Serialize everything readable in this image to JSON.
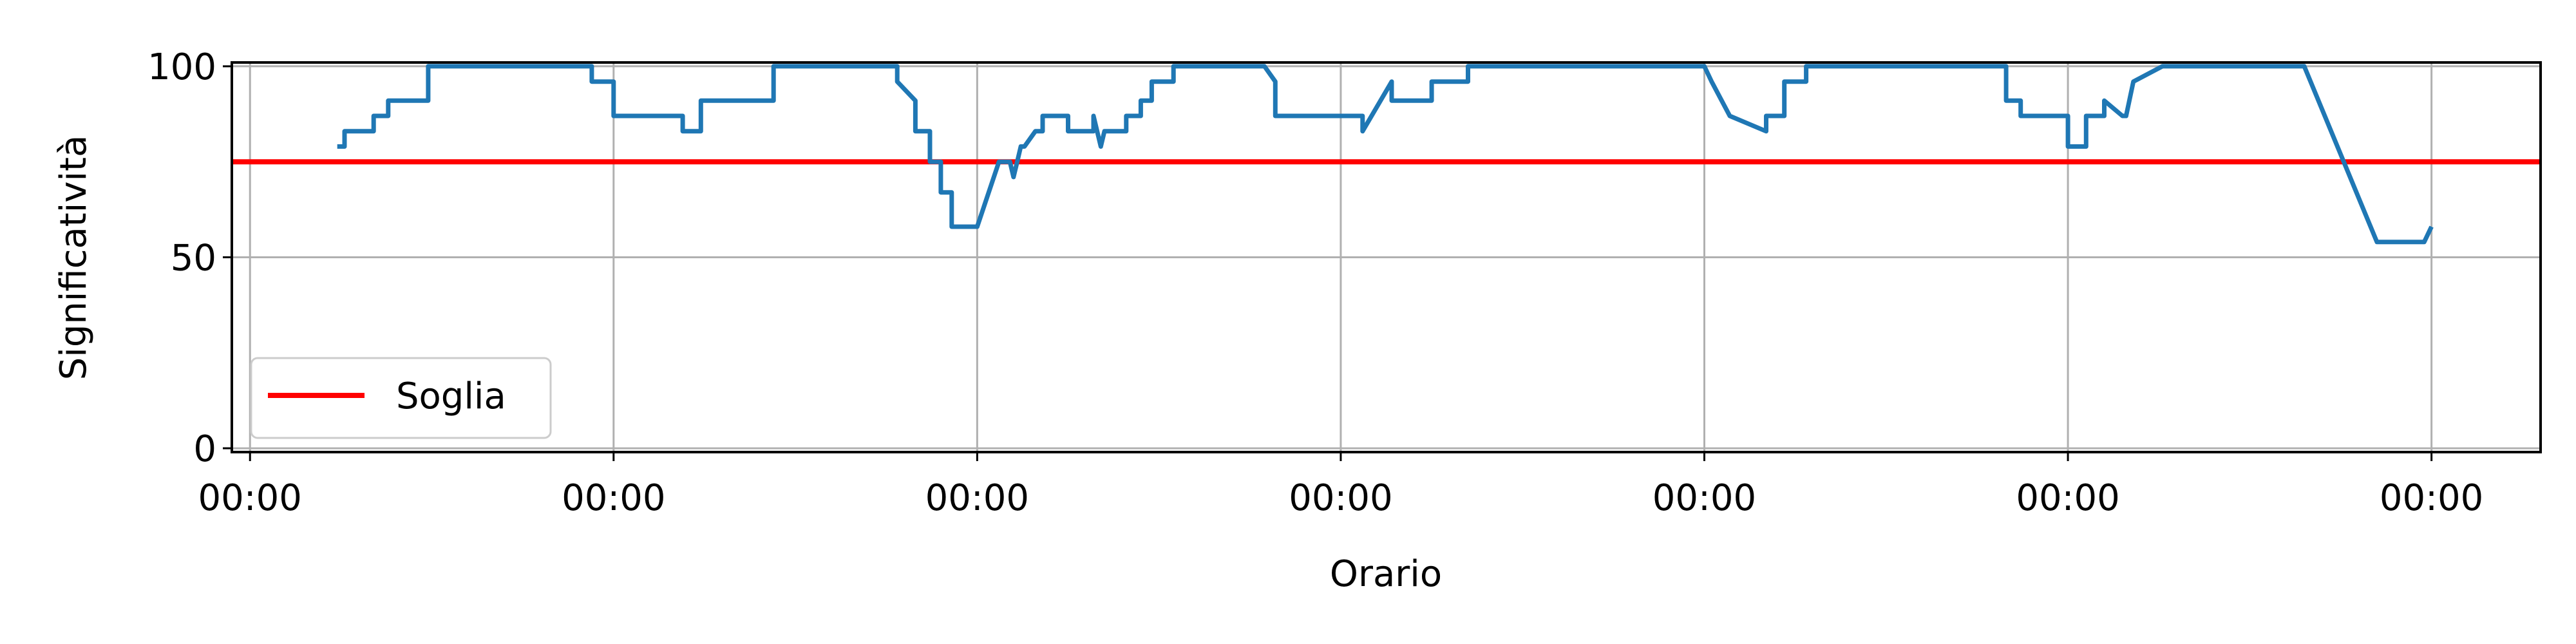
{
  "chart_data": {
    "type": "line",
    "xlabel": "Orario",
    "ylabel": "Significatività",
    "x_tick_labels": [
      "00:00",
      "00:00",
      "00:00",
      "00:00",
      "00:00",
      "00:00",
      "00:00"
    ],
    "y_ticks": [
      0,
      50,
      100
    ],
    "ylim": [
      -1,
      101
    ],
    "xlim": [
      -0.05,
      6.3
    ],
    "grid": true,
    "legend_placement": "lower-left",
    "threshold": {
      "name": "Soglia",
      "value": 75,
      "color": "#ff0000"
    },
    "series": [
      {
        "color": "#1f77b4",
        "x": [
          0.24,
          0.26,
          0.26,
          0.34,
          0.34,
          0.38,
          0.38,
          0.41,
          0.41,
          0.49,
          0.49,
          0.94,
          0.94,
          1.0,
          1.0,
          1.19,
          1.19,
          1.24,
          1.24,
          1.44,
          1.44,
          1.78,
          1.78,
          1.83,
          1.83,
          1.87,
          1.87,
          1.9,
          1.9,
          1.93,
          1.93,
          1.96,
          1.96,
          2.0,
          2.06,
          2.09,
          2.1,
          2.11,
          2.12,
          2.13,
          2.16,
          2.16,
          2.18,
          2.18,
          2.21,
          2.21,
          2.25,
          2.25,
          2.32,
          2.32,
          2.34,
          2.35,
          2.36,
          2.36,
          2.41,
          2.41,
          2.45,
          2.45,
          2.48,
          2.48,
          2.54,
          2.54,
          2.57,
          2.57,
          2.79,
          2.82,
          2.82,
          3.0,
          3.02,
          3.06,
          3.06,
          3.14,
          3.14,
          3.25,
          3.25,
          3.35,
          3.35,
          4.0,
          4.02,
          4.02,
          4.07,
          4.07,
          4.17,
          4.17,
          4.22,
          4.22,
          4.28,
          4.28,
          4.38,
          4.38,
          4.49,
          4.49,
          4.83,
          4.83,
          4.87,
          4.87,
          4.91,
          4.91,
          5.0,
          5.0,
          5.05,
          5.05,
          5.1,
          5.1,
          5.15,
          5.16,
          5.18,
          5.18,
          5.26,
          5.26,
          5.4,
          5.4,
          5.65,
          5.85,
          5.98,
          6.0
        ],
        "y": [
          79,
          79,
          83,
          83,
          87,
          87,
          91,
          91,
          91,
          91,
          100,
          100,
          96,
          96,
          87,
          87,
          83,
          83,
          91,
          91,
          100,
          100,
          96,
          91,
          83,
          83,
          75,
          75,
          67,
          67,
          58,
          58,
          58,
          58,
          75,
          75,
          71,
          75,
          79,
          79,
          83,
          83,
          83,
          87,
          87,
          87,
          87,
          83,
          83,
          87,
          79,
          83,
          83,
          83,
          83,
          87,
          87,
          91,
          91,
          96,
          96,
          100,
          100,
          100,
          100,
          96,
          87,
          87,
          87,
          87,
          83,
          96,
          91,
          91,
          96,
          96,
          100,
          100,
          96,
          96,
          87,
          87,
          83,
          87,
          87,
          96,
          96,
          100,
          100,
          100,
          100,
          100,
          100,
          91,
          91,
          87,
          87,
          87,
          87,
          79,
          79,
          87,
          87,
          91,
          87,
          87,
          96,
          96,
          100,
          100,
          100,
          100,
          100,
          54,
          54,
          58
        ]
      }
    ]
  }
}
